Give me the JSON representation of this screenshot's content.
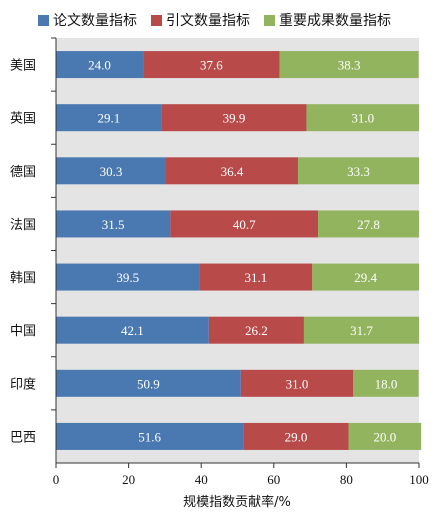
{
  "chart_data": {
    "type": "bar",
    "orientation": "horizontal",
    "stacked": true,
    "title": "",
    "xlabel": "规模指数贡献率/%",
    "ylabel": "",
    "xlim": [
      0,
      100
    ],
    "xticks": [
      "0",
      "20",
      "40",
      "60",
      "80",
      "100"
    ],
    "categories": [
      "美国",
      "英国",
      "德国",
      "法国",
      "韩国",
      "中国",
      "印度",
      "巴西"
    ],
    "series": [
      {
        "name": "论文数量指标",
        "color": "#4a78b1",
        "values": [
          24.0,
          29.1,
          30.3,
          31.5,
          39.5,
          42.1,
          50.9,
          51.6
        ]
      },
      {
        "name": "引文数量指标",
        "color": "#b84a4a",
        "values": [
          37.6,
          39.9,
          36.4,
          40.7,
          31.1,
          26.2,
          31.0,
          29.0
        ]
      },
      {
        "name": "重要成果数量指标",
        "color": "#93b45e",
        "values": [
          38.3,
          31.0,
          33.3,
          27.8,
          29.4,
          31.7,
          18.0,
          20.0
        ]
      }
    ],
    "data_labels": [
      [
        "24.0",
        "29.1",
        "30.3",
        "31.5",
        "39.5",
        "42.1",
        "50.9",
        "51.6"
      ],
      [
        "37.6",
        "39.9",
        "36.4",
        "40.7",
        "31.1",
        "26.2",
        "31.0",
        "29.0"
      ],
      [
        "38.3",
        "31.0",
        "33.3",
        "27.8",
        "29.4",
        "31.7",
        "18.0",
        "20.0"
      ]
    ],
    "legend_position": "top",
    "grid": false,
    "background_color": "#e4e4e4"
  }
}
